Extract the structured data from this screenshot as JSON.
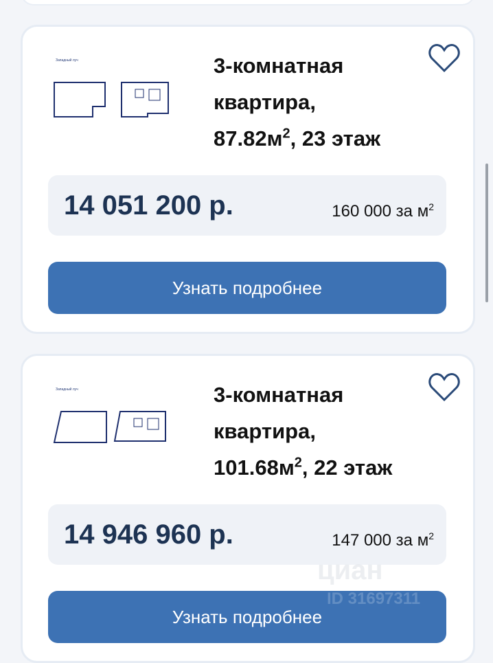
{
  "listings": [
    {
      "title_line1": "3-комнатная",
      "title_line2": "квартира,",
      "area": "87.82м",
      "area_sup": "2",
      "area_rest": ", 23 этаж",
      "price": "14 051 200 р.",
      "price_per_m2": "160 000 за м",
      "ppm_sup": "2",
      "button": "Узнать подробнее",
      "plan_label": "Западный луч",
      "favorite_icon": "heart-icon"
    },
    {
      "title_line1": "3-комнатная",
      "title_line2": "квартира,",
      "area": "101.68м",
      "area_sup": "2",
      "area_rest": ", 22 этаж",
      "price": "14 946 960 р.",
      "price_per_m2": "147 000 за м",
      "ppm_sup": "2",
      "button": "Узнать подробнее",
      "plan_label": "Западный луч",
      "favorite_icon": "heart-icon"
    }
  ],
  "watermark": {
    "brand": "циан",
    "id": "ID 31697311"
  },
  "colors": {
    "button": "#3d72b4",
    "price": "#1d3353",
    "price_box": "#eff2f7"
  }
}
